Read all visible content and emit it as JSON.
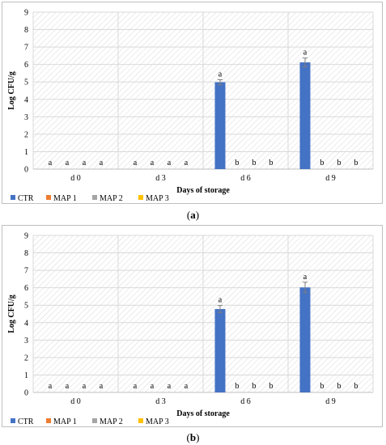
{
  "caption_labels": {
    "a_open": "(",
    "a_letter": "a",
    "a_close": ")",
    "b_open": "(",
    "b_letter": "b",
    "b_close": ")"
  },
  "colors": {
    "CTR": "#4472C4",
    "MAP 1": "#ED7D31",
    "MAP 2": "#A5A5A5",
    "MAP 3": "#FFC000",
    "hatch": "#d9d9d9",
    "axis": "#bfbfbf"
  },
  "chart_data": [
    {
      "type": "bar",
      "panel": "a",
      "categories": [
        "d 0",
        "d 3",
        "d 6",
        "d 9"
      ],
      "series": [
        {
          "name": "CTR",
          "values": [
            0,
            0,
            4.98,
            6.12
          ],
          "errors": [
            0,
            0,
            0.15,
            0.25
          ],
          "letters": [
            "a",
            "a",
            "a",
            "a"
          ]
        },
        {
          "name": "MAP 1",
          "values": [
            0,
            0,
            0,
            0
          ],
          "letters": [
            "a",
            "a",
            "b",
            "b"
          ]
        },
        {
          "name": "MAP 2",
          "values": [
            0,
            0,
            0,
            0
          ],
          "letters": [
            "a",
            "a",
            "b",
            "b"
          ]
        },
        {
          "name": "MAP 3",
          "values": [
            0,
            0,
            0,
            0
          ],
          "letters": [
            "a",
            "a",
            "b",
            "b"
          ]
        }
      ],
      "yticks": [
        "0",
        "1",
        "2",
        "3",
        "4",
        "5",
        "6",
        "7",
        "8",
        "9"
      ],
      "xlabel": "Days of storage",
      "ylabel": "Log CFU/g",
      "ylim": [
        0,
        9
      ],
      "grid": true,
      "legend_position": "bottom-left"
    },
    {
      "type": "bar",
      "panel": "b",
      "categories": [
        "d 0",
        "d 3",
        "d 6",
        "d 9"
      ],
      "series": [
        {
          "name": "CTR",
          "values": [
            0,
            0,
            4.78,
            6.02
          ],
          "errors": [
            0,
            0,
            0.2,
            0.3
          ],
          "letters": [
            "a",
            "a",
            "a",
            "a"
          ]
        },
        {
          "name": "MAP 1",
          "values": [
            0,
            0,
            0,
            0
          ],
          "letters": [
            "a",
            "a",
            "b",
            "b"
          ]
        },
        {
          "name": "MAP 2",
          "values": [
            0,
            0,
            0,
            0
          ],
          "letters": [
            "a",
            "a",
            "b",
            "b"
          ]
        },
        {
          "name": "MAP 3",
          "values": [
            0,
            0,
            0,
            0
          ],
          "letters": [
            "a",
            "a",
            "b",
            "b"
          ]
        }
      ],
      "yticks": [
        "0",
        "1",
        "2",
        "3",
        "4",
        "5",
        "6",
        "7",
        "8",
        "9"
      ],
      "xlabel": "Days of storage",
      "ylabel": "Log CFU/g",
      "ylim": [
        0,
        9
      ],
      "grid": true,
      "legend_position": "bottom-left"
    }
  ]
}
